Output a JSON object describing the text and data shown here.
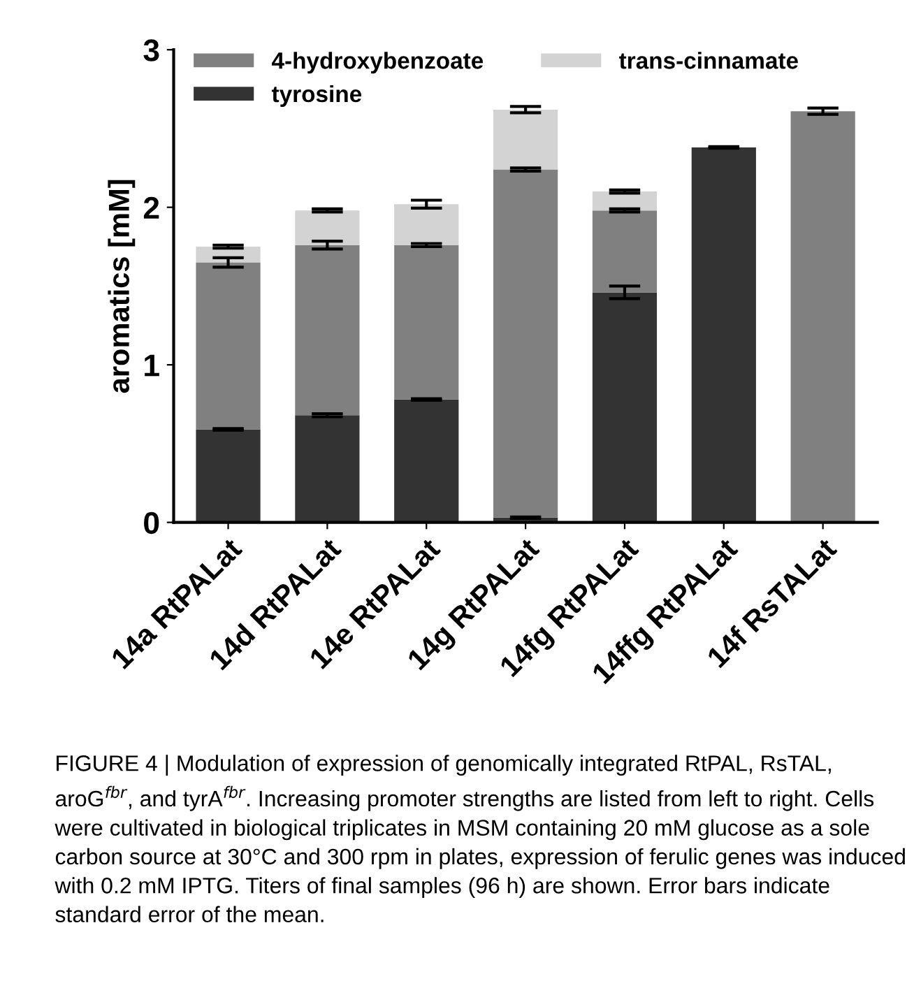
{
  "chart_data": {
    "type": "bar",
    "stacked": true,
    "ylabel": "aromatics [mM]",
    "categories": [
      "14a RtPALat",
      "14d RtPALat",
      "14e RtPALat",
      "14g RtPALat",
      "14fg RtPALat",
      "14ffg RtPALat",
      "14f RsTALat"
    ],
    "series": [
      {
        "name": "tyrosine",
        "color": "#333333",
        "values": [
          0.59,
          0.68,
          0.78,
          0.03,
          1.46,
          2.38,
          0
        ],
        "errors": [
          0.005,
          0.01,
          0.005,
          0.005,
          0.04,
          0.005,
          null
        ]
      },
      {
        "name": "4-hydroxybenzoate",
        "color": "#808080",
        "values": [
          1.06,
          1.08,
          0.98,
          2.21,
          0.52,
          0,
          2.61
        ],
        "errors": [
          0.03,
          0.025,
          0.01,
          0.01,
          0.01,
          null,
          0.02
        ]
      },
      {
        "name": "trans-cinnamate",
        "color": "#d3d3d3",
        "values": [
          0.1,
          0.22,
          0.26,
          0.38,
          0.12,
          0,
          0
        ],
        "errors": [
          0.01,
          0.01,
          0.025,
          0.02,
          0.01,
          null,
          null
        ]
      }
    ],
    "ylim": [
      0,
      3
    ],
    "yticks": [
      0,
      1,
      2,
      3
    ],
    "grid": false,
    "legend": "top left",
    "annotations": [
      "FIGURE 4 | Modulation of expression of genomically integrated RtPAL, RsTAL, aroG$^{fbr}$, and tyrA$^{fbr}$. Increasing promoter strengths are listed from left to right. Cells were cultivated in biological triplicates in MSM containing 20 mM glucose as a sole carbon source at 30°C and 300 rpm in plates, expression of ferulic genes was induced with 0.2 mM IPTG. Titers of final samples (96 h) are shown. Error bars indicate standard error of the mean."
    ]
  }
}
